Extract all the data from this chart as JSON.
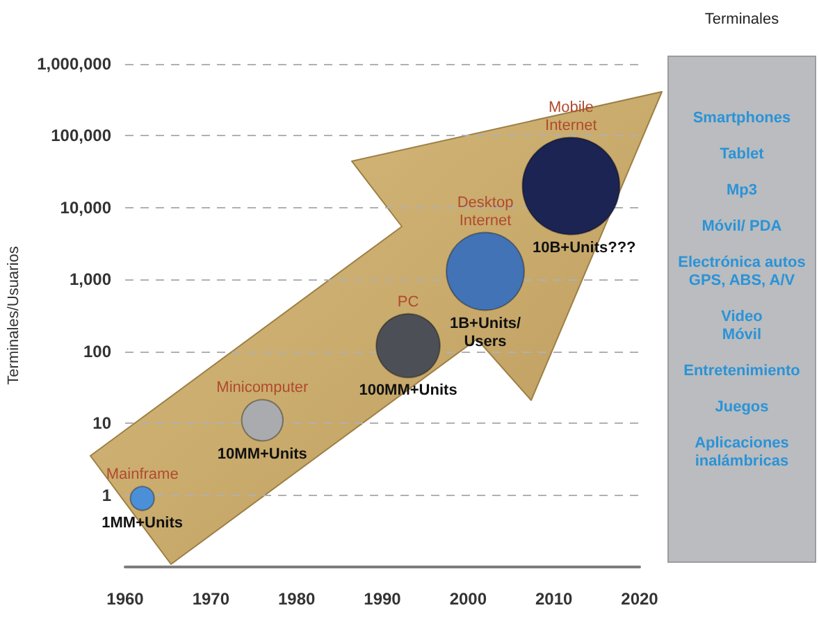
{
  "chart_data": [
    {
      "type": "bubble",
      "ylabel": "Terminales/Usuarios",
      "series": [
        {
          "name": "Mainframe",
          "color": "#4b8fd9",
          "x": [
            1962
          ],
          "values": [
            0.9
          ],
          "sizes": [
            0.06
          ]
        },
        {
          "name": "Minicomputer",
          "color": "#a9abae",
          "x": [
            1976
          ],
          "values": [
            11
          ],
          "sizes": [
            0.18
          ]
        },
        {
          "name": "PC",
          "color": "#4c4f55",
          "x": [
            1993
          ],
          "values": [
            120
          ],
          "sizes": [
            0.43
          ]
        },
        {
          "name": "Desktop\nInternet",
          "color": "#4273b6",
          "x": [
            2002
          ],
          "values": [
            1300
          ],
          "sizes": [
            0.64
          ]
        },
        {
          "name": "Mobile\nInternet",
          "color": "#1b2452",
          "x": [
            2012
          ],
          "values": [
            20000
          ],
          "sizes": [
            1
          ]
        }
      ],
      "annotations": [
        {
          "text": "1MM+Units",
          "x": 1962,
          "y": 0.9
        },
        {
          "text": "10MM+Units",
          "x": 1976,
          "y": 11
        },
        {
          "text": "100MM+Units",
          "x": 1993,
          "y": 120
        },
        {
          "text": "1B+Units/\nUsers",
          "x": 2002,
          "y": 1300
        },
        "10B+Units???"
      ],
      "xlim": [
        1960,
        2020
      ],
      "xticks": [
        1960,
        1970,
        1980,
        1990,
        2000,
        2010,
        2020
      ],
      "ylim": [
        0.1,
        1000000
      ],
      "yticks": [
        1,
        10,
        100,
        {
          "value": 1000,
          "label": "1,000"
        },
        {
          "value": 10000,
          "label": "10,000"
        },
        {
          "value": 100000,
          "label": "100,000"
        },
        {
          "value": 1000000,
          "label": "1,000,000"
        }
      ],
      "log": true,
      "grid": "y"
    },
    {
      "type": "other",
      "title": "Terminales",
      "annotations": [
        "Smartphones",
        "Tablet",
        "Mp3",
        "Móvil/ PDA",
        "Electrónica autos\nGPS, ABS, A/V",
        "Video\nMóvil",
        "Entretenimiento",
        "Juegos",
        "Aplicaciones\ninalámbricas"
      ]
    }
  ]
}
